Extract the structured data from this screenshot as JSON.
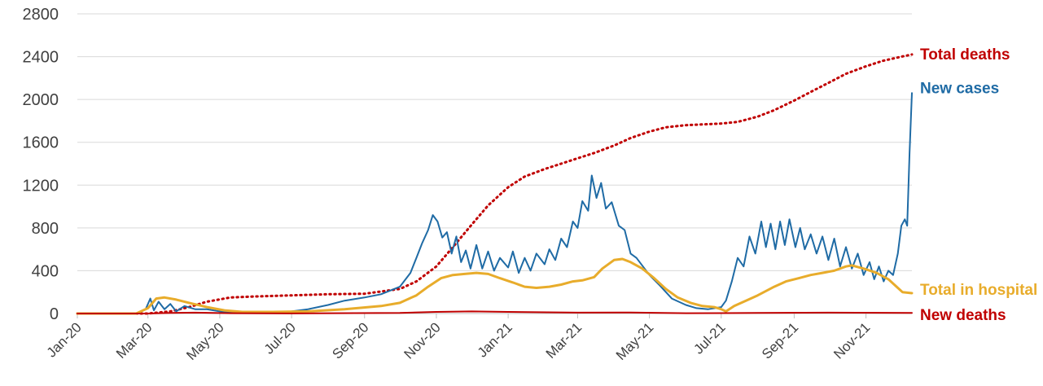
{
  "chart_data": {
    "type": "line",
    "title": "",
    "xlabel": "",
    "ylabel": "",
    "ylim": [
      0,
      2800
    ],
    "xlim": [
      "2020-01-01",
      "2021-12-10"
    ],
    "grid": "horizontal",
    "legend": "direct-labels-right",
    "yticks": [
      0,
      400,
      800,
      1200,
      1600,
      2000,
      2400,
      2800
    ],
    "xticks": [
      {
        "date": "2020-01-01",
        "label": "Jan-20"
      },
      {
        "date": "2020-03-01",
        "label": "Mar-20"
      },
      {
        "date": "2020-05-01",
        "label": "May-20"
      },
      {
        "date": "2020-07-01",
        "label": "Jul-20"
      },
      {
        "date": "2020-09-01",
        "label": "Sep-20"
      },
      {
        "date": "2020-11-01",
        "label": "Nov-20"
      },
      {
        "date": "2021-01-01",
        "label": "Jan-21"
      },
      {
        "date": "2021-03-01",
        "label": "Mar-21"
      },
      {
        "date": "2021-05-01",
        "label": "May-21"
      },
      {
        "date": "2021-07-01",
        "label": "Jul-21"
      },
      {
        "date": "2021-09-01",
        "label": "Sep-21"
      },
      {
        "date": "2021-11-01",
        "label": "Nov-21"
      }
    ],
    "series": [
      {
        "name": "Total deaths",
        "color": "#c00000",
        "style": "dotted",
        "points": [
          [
            "2020-01-01",
            0
          ],
          [
            "2020-03-01",
            0
          ],
          [
            "2020-03-20",
            20
          ],
          [
            "2020-04-05",
            60
          ],
          [
            "2020-04-20",
            110
          ],
          [
            "2020-05-10",
            150
          ],
          [
            "2020-06-01",
            160
          ],
          [
            "2020-07-01",
            170
          ],
          [
            "2020-08-01",
            180
          ],
          [
            "2020-09-01",
            185
          ],
          [
            "2020-10-01",
            230
          ],
          [
            "2020-10-15",
            300
          ],
          [
            "2020-11-01",
            440
          ],
          [
            "2020-11-15",
            620
          ],
          [
            "2020-12-01",
            830
          ],
          [
            "2020-12-15",
            1010
          ],
          [
            "2021-01-01",
            1180
          ],
          [
            "2021-01-15",
            1280
          ],
          [
            "2021-02-01",
            1350
          ],
          [
            "2021-02-15",
            1400
          ],
          [
            "2021-03-01",
            1450
          ],
          [
            "2021-03-15",
            1500
          ],
          [
            "2021-04-01",
            1570
          ],
          [
            "2021-04-15",
            1640
          ],
          [
            "2021-05-01",
            1700
          ],
          [
            "2021-05-15",
            1740
          ],
          [
            "2021-06-01",
            1760
          ],
          [
            "2021-07-01",
            1775
          ],
          [
            "2021-07-15",
            1790
          ],
          [
            "2021-08-01",
            1840
          ],
          [
            "2021-08-15",
            1900
          ],
          [
            "2021-09-01",
            1990
          ],
          [
            "2021-09-15",
            2070
          ],
          [
            "2021-10-01",
            2160
          ],
          [
            "2021-10-15",
            2240
          ],
          [
            "2021-11-01",
            2310
          ],
          [
            "2021-11-15",
            2360
          ],
          [
            "2021-12-01",
            2400
          ],
          [
            "2021-12-10",
            2420
          ]
        ]
      },
      {
        "name": "New cases",
        "color": "#1f6ba5",
        "style": "solid",
        "points": [
          [
            "2020-01-01",
            0
          ],
          [
            "2020-02-20",
            0
          ],
          [
            "2020-02-28",
            40
          ],
          [
            "2020-03-03",
            140
          ],
          [
            "2020-03-06",
            30
          ],
          [
            "2020-03-10",
            110
          ],
          [
            "2020-03-15",
            40
          ],
          [
            "2020-03-20",
            90
          ],
          [
            "2020-03-25",
            20
          ],
          [
            "2020-04-01",
            70
          ],
          [
            "2020-04-10",
            40
          ],
          [
            "2020-04-20",
            40
          ],
          [
            "2020-05-01",
            20
          ],
          [
            "2020-05-15",
            10
          ],
          [
            "2020-06-01",
            5
          ],
          [
            "2020-06-20",
            10
          ],
          [
            "2020-07-01",
            20
          ],
          [
            "2020-07-15",
            40
          ],
          [
            "2020-08-01",
            80
          ],
          [
            "2020-08-15",
            120
          ],
          [
            "2020-09-01",
            150
          ],
          [
            "2020-09-15",
            180
          ],
          [
            "2020-10-01",
            250
          ],
          [
            "2020-10-10",
            380
          ],
          [
            "2020-10-15",
            520
          ],
          [
            "2020-10-20",
            660
          ],
          [
            "2020-10-25",
            780
          ],
          [
            "2020-10-29",
            920
          ],
          [
            "2020-11-02",
            860
          ],
          [
            "2020-11-06",
            710
          ],
          [
            "2020-11-10",
            760
          ],
          [
            "2020-11-14",
            560
          ],
          [
            "2020-11-18",
            720
          ],
          [
            "2020-11-22",
            480
          ],
          [
            "2020-11-26",
            590
          ],
          [
            "2020-11-30",
            420
          ],
          [
            "2020-12-05",
            640
          ],
          [
            "2020-12-10",
            420
          ],
          [
            "2020-12-15",
            580
          ],
          [
            "2020-12-20",
            400
          ],
          [
            "2020-12-25",
            520
          ],
          [
            "2021-01-01",
            430
          ],
          [
            "2021-01-05",
            580
          ],
          [
            "2021-01-10",
            380
          ],
          [
            "2021-01-15",
            520
          ],
          [
            "2021-01-20",
            400
          ],
          [
            "2021-01-25",
            560
          ],
          [
            "2021-02-01",
            460
          ],
          [
            "2021-02-05",
            600
          ],
          [
            "2021-02-10",
            500
          ],
          [
            "2021-02-15",
            700
          ],
          [
            "2021-02-20",
            620
          ],
          [
            "2021-02-25",
            860
          ],
          [
            "2021-03-01",
            800
          ],
          [
            "2021-03-05",
            1050
          ],
          [
            "2021-03-10",
            960
          ],
          [
            "2021-03-13",
            1290
          ],
          [
            "2021-03-17",
            1080
          ],
          [
            "2021-03-21",
            1220
          ],
          [
            "2021-03-25",
            980
          ],
          [
            "2021-03-30",
            1040
          ],
          [
            "2021-04-05",
            820
          ],
          [
            "2021-04-10",
            780
          ],
          [
            "2021-04-15",
            560
          ],
          [
            "2021-04-20",
            520
          ],
          [
            "2021-05-01",
            360
          ],
          [
            "2021-05-10",
            260
          ],
          [
            "2021-05-20",
            140
          ],
          [
            "2021-06-01",
            80
          ],
          [
            "2021-06-10",
            50
          ],
          [
            "2021-06-20",
            40
          ],
          [
            "2021-07-01",
            60
          ],
          [
            "2021-07-05",
            120
          ],
          [
            "2021-07-10",
            300
          ],
          [
            "2021-07-15",
            520
          ],
          [
            "2021-07-20",
            440
          ],
          [
            "2021-07-25",
            720
          ],
          [
            "2021-07-30",
            560
          ],
          [
            "2021-08-04",
            860
          ],
          [
            "2021-08-08",
            620
          ],
          [
            "2021-08-12",
            840
          ],
          [
            "2021-08-16",
            600
          ],
          [
            "2021-08-20",
            860
          ],
          [
            "2021-08-24",
            640
          ],
          [
            "2021-08-28",
            880
          ],
          [
            "2021-09-02",
            620
          ],
          [
            "2021-09-06",
            800
          ],
          [
            "2021-09-10",
            600
          ],
          [
            "2021-09-15",
            740
          ],
          [
            "2021-09-20",
            560
          ],
          [
            "2021-09-25",
            720
          ],
          [
            "2021-09-30",
            500
          ],
          [
            "2021-10-05",
            700
          ],
          [
            "2021-10-10",
            440
          ],
          [
            "2021-10-15",
            620
          ],
          [
            "2021-10-20",
            420
          ],
          [
            "2021-10-25",
            560
          ],
          [
            "2021-10-30",
            360
          ],
          [
            "2021-11-04",
            480
          ],
          [
            "2021-11-08",
            320
          ],
          [
            "2021-11-12",
            440
          ],
          [
            "2021-11-16",
            300
          ],
          [
            "2021-11-20",
            400
          ],
          [
            "2021-11-24",
            360
          ],
          [
            "2021-11-28",
            560
          ],
          [
            "2021-12-01",
            820
          ],
          [
            "2021-12-04",
            880
          ],
          [
            "2021-12-06",
            820
          ],
          [
            "2021-12-08",
            1500
          ],
          [
            "2021-12-10",
            2060
          ]
        ]
      },
      {
        "name": "Total in hospital",
        "color": "#e8ac2b",
        "style": "solid",
        "points": [
          [
            "2020-01-01",
            0
          ],
          [
            "2020-02-20",
            0
          ],
          [
            "2020-03-01",
            50
          ],
          [
            "2020-03-08",
            140
          ],
          [
            "2020-03-15",
            150
          ],
          [
            "2020-03-25",
            130
          ],
          [
            "2020-04-05",
            100
          ],
          [
            "2020-04-20",
            60
          ],
          [
            "2020-05-05",
            30
          ],
          [
            "2020-05-20",
            15
          ],
          [
            "2020-06-15",
            15
          ],
          [
            "2020-07-15",
            20
          ],
          [
            "2020-08-15",
            40
          ],
          [
            "2020-09-15",
            70
          ],
          [
            "2020-10-01",
            100
          ],
          [
            "2020-10-15",
            170
          ],
          [
            "2020-10-25",
            250
          ],
          [
            "2020-11-05",
            330
          ],
          [
            "2020-11-15",
            360
          ],
          [
            "2020-11-25",
            370
          ],
          [
            "2020-12-05",
            380
          ],
          [
            "2020-12-15",
            370
          ],
          [
            "2020-12-25",
            330
          ],
          [
            "2021-01-05",
            290
          ],
          [
            "2021-01-15",
            250
          ],
          [
            "2021-01-25",
            240
          ],
          [
            "2021-02-05",
            250
          ],
          [
            "2021-02-15",
            270
          ],
          [
            "2021-02-25",
            300
          ],
          [
            "2021-03-05",
            310
          ],
          [
            "2021-03-15",
            340
          ],
          [
            "2021-03-22",
            420
          ],
          [
            "2021-04-01",
            500
          ],
          [
            "2021-04-08",
            510
          ],
          [
            "2021-04-15",
            480
          ],
          [
            "2021-04-25",
            420
          ],
          [
            "2021-05-05",
            330
          ],
          [
            "2021-05-15",
            230
          ],
          [
            "2021-05-25",
            150
          ],
          [
            "2021-06-05",
            100
          ],
          [
            "2021-06-15",
            70
          ],
          [
            "2021-06-25",
            60
          ],
          [
            "2021-07-01",
            40
          ],
          [
            "2021-07-05",
            20
          ],
          [
            "2021-07-12",
            70
          ],
          [
            "2021-07-22",
            120
          ],
          [
            "2021-08-01",
            170
          ],
          [
            "2021-08-15",
            250
          ],
          [
            "2021-08-25",
            300
          ],
          [
            "2021-09-05",
            330
          ],
          [
            "2021-09-15",
            360
          ],
          [
            "2021-09-25",
            380
          ],
          [
            "2021-10-05",
            400
          ],
          [
            "2021-10-15",
            440
          ],
          [
            "2021-10-20",
            450
          ],
          [
            "2021-10-30",
            420
          ],
          [
            "2021-11-10",
            380
          ],
          [
            "2021-11-20",
            320
          ],
          [
            "2021-11-28",
            240
          ],
          [
            "2021-12-02",
            200
          ],
          [
            "2021-12-10",
            190
          ]
        ]
      },
      {
        "name": "New deaths",
        "color": "#c00000",
        "style": "solid",
        "points": [
          [
            "2020-01-01",
            0
          ],
          [
            "2020-03-01",
            0
          ],
          [
            "2020-03-20",
            5
          ],
          [
            "2020-04-10",
            8
          ],
          [
            "2020-05-10",
            3
          ],
          [
            "2020-07-01",
            1
          ],
          [
            "2020-10-01",
            5
          ],
          [
            "2020-11-01",
            15
          ],
          [
            "2020-12-01",
            20
          ],
          [
            "2021-01-01",
            15
          ],
          [
            "2021-03-01",
            8
          ],
          [
            "2021-04-15",
            10
          ],
          [
            "2021-06-01",
            3
          ],
          [
            "2021-08-01",
            5
          ],
          [
            "2021-10-01",
            8
          ],
          [
            "2021-12-10",
            5
          ]
        ]
      }
    ]
  }
}
